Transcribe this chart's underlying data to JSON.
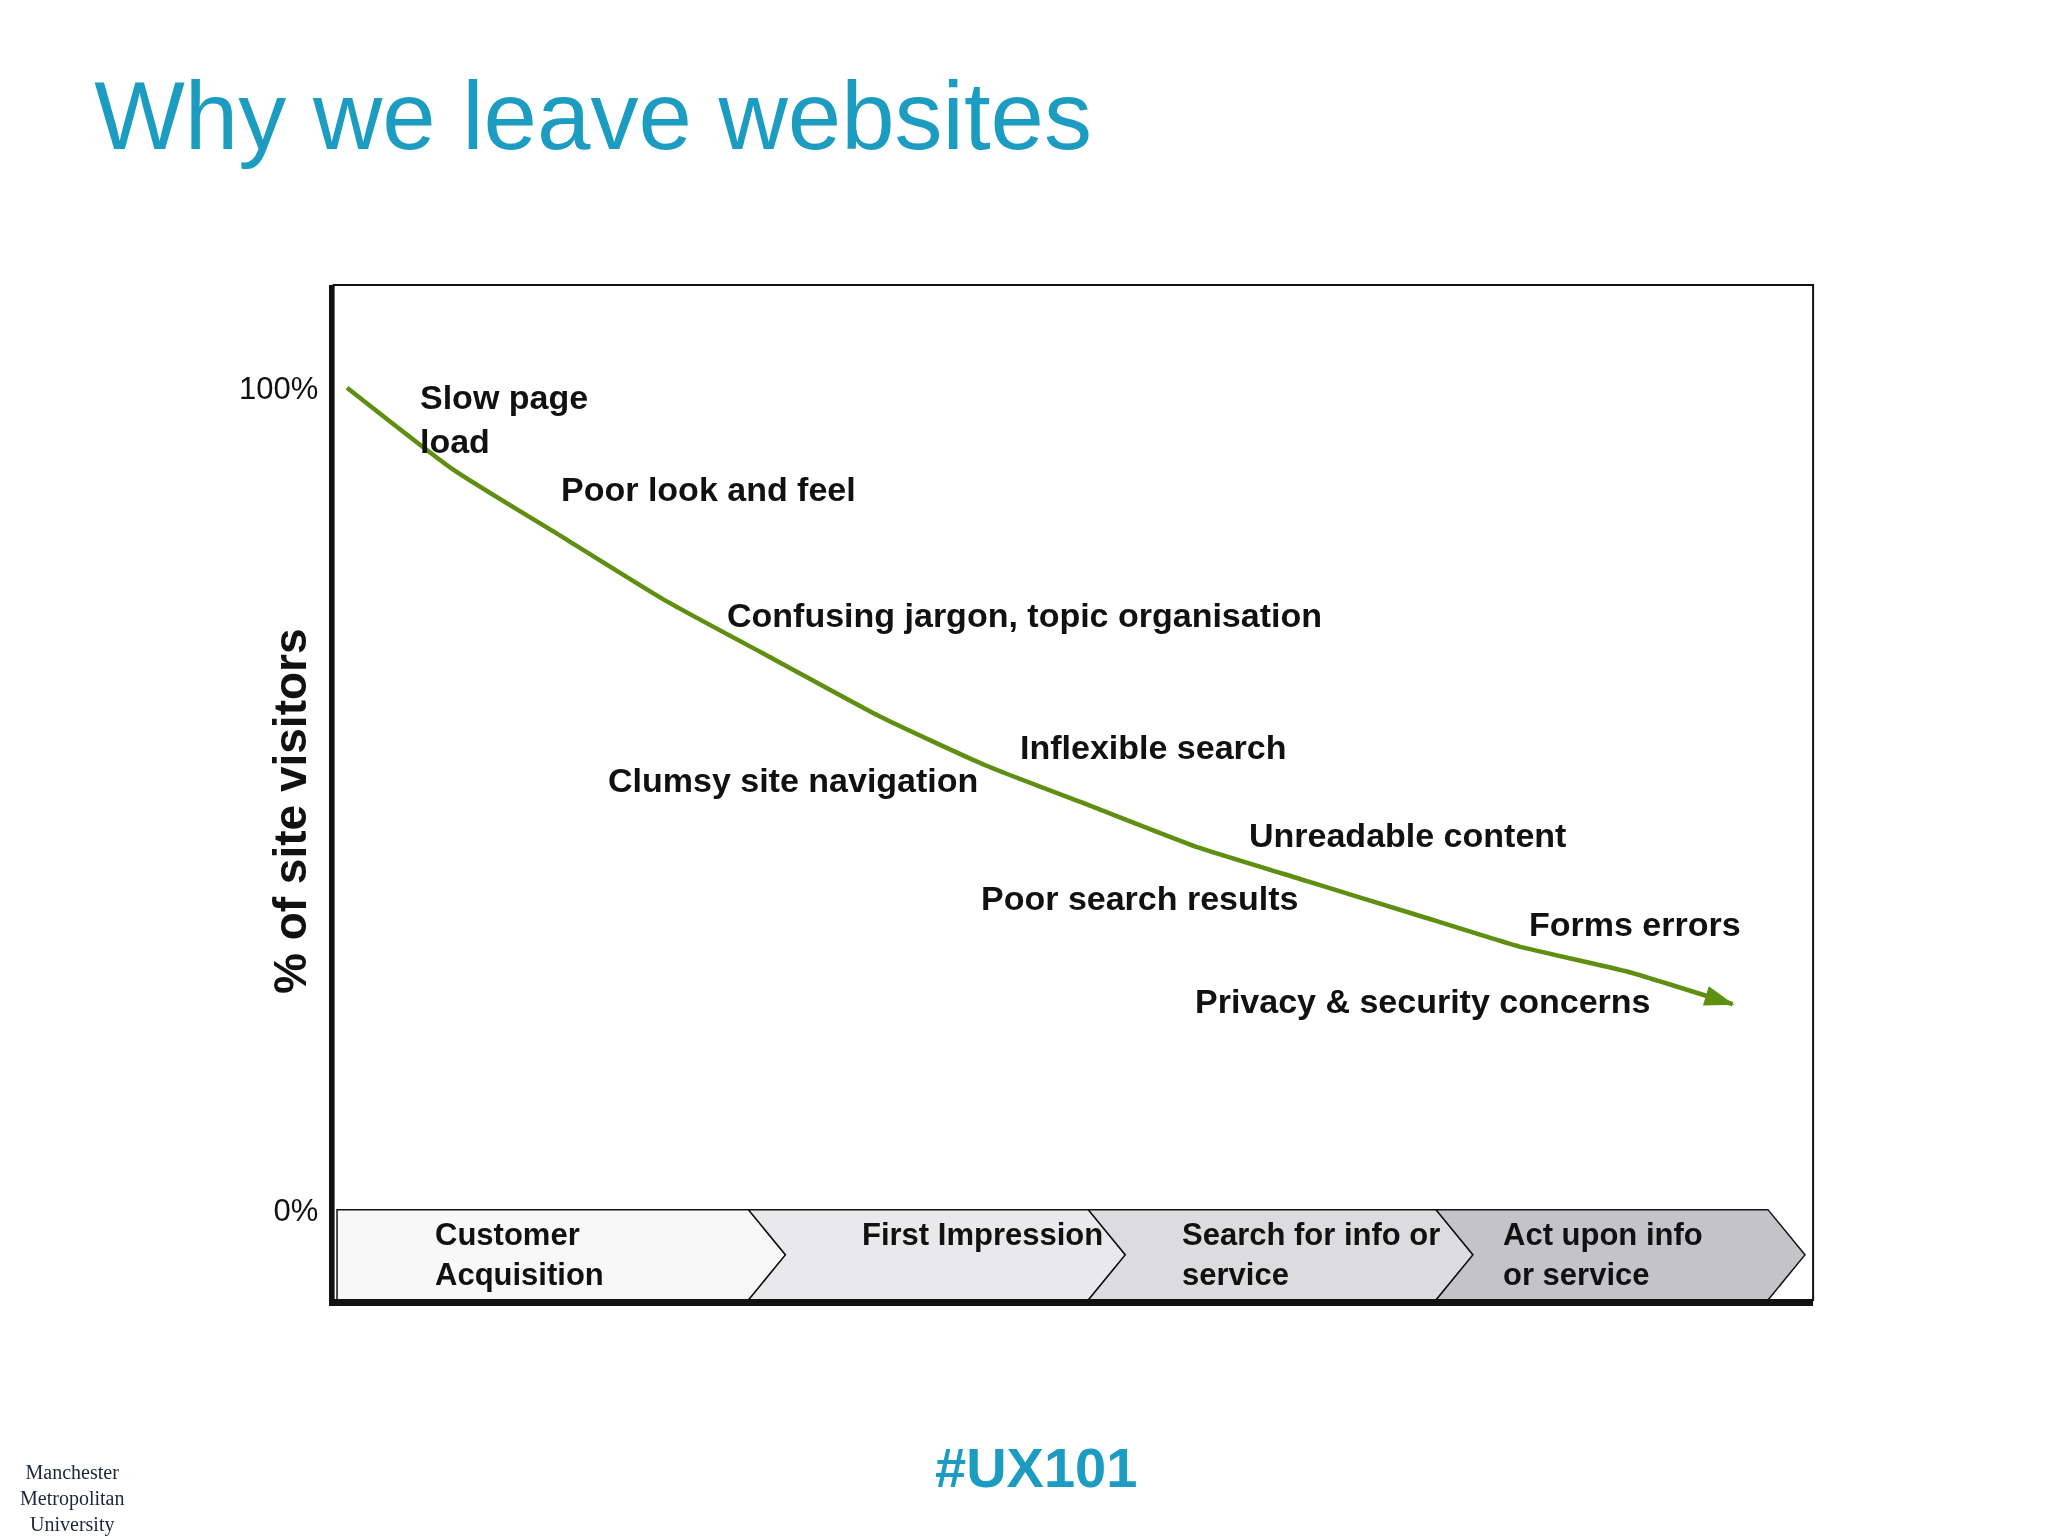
{
  "chart_data": {
    "type": "line",
    "title": "Why we leave websites",
    "ylabel": "% of site visitors",
    "categories": [
      null,
      null,
      null,
      null,
      null,
      null,
      null,
      null,
      null,
      null,
      null,
      null,
      null,
      null
    ],
    "values": [
      100,
      90,
      82,
      74,
      67,
      60,
      54,
      49,
      44,
      40,
      36,
      32,
      29,
      25
    ],
    "color": "#5e8f10",
    "line_style": "solid",
    "marker": "none",
    "ylim": [
      -11,
      112.5
    ],
    "yticks": [
      {
        "value": 100,
        "label": "100%"
      },
      {
        "value": 0,
        "label": "0%"
      }
    ],
    "tick_labels": "y",
    "grid": false,
    "annotations": [
      "Slow page\nload",
      "Poor look and feel",
      "Confusing jargon, topic organisation",
      "Clumsy site navigation",
      "Inflexible search",
      "Unreadable content",
      "Poor search results",
      "Forms errors",
      "Privacy & security concerns",
      "Customer\nAcquisition",
      "First Impression",
      "Search for info or\nservice",
      "Act upon info\nor service",
      "#UX101",
      "Manchester\nMetropolitan\nUniversity"
    ]
  }
}
